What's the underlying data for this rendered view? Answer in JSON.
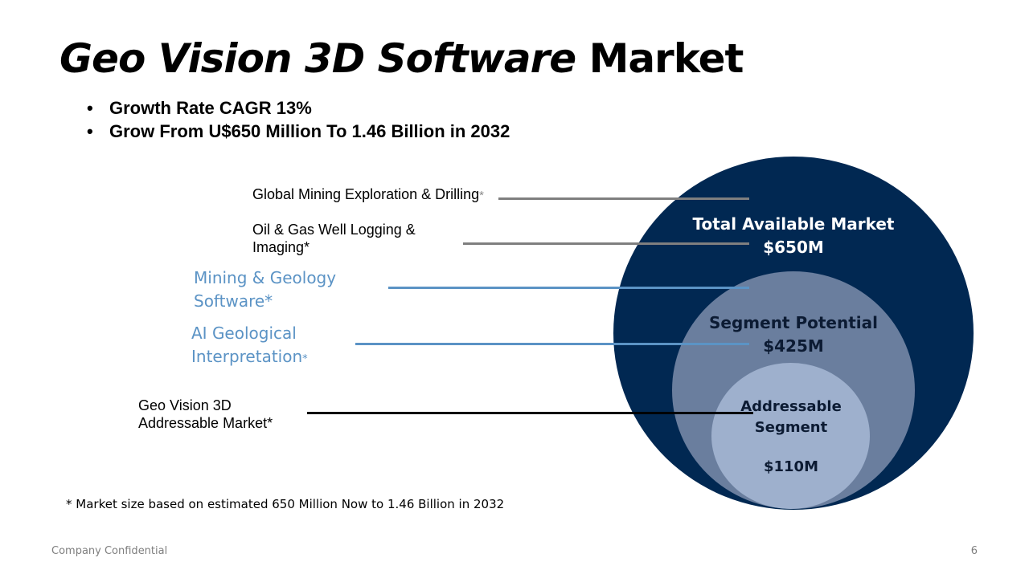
{
  "title": {
    "italic_part": "Geo Vision 3D Software",
    "plain_part": "Market"
  },
  "bullets": [
    "Growth Rate CAGR 13%",
    "Grow From U$650 Million To 1.46 Billion in 2032"
  ],
  "labels": {
    "mining_exploration": {
      "text": "Global Mining Exploration & Drilling",
      "asterisk": "*"
    },
    "oil_gas": {
      "line1": "Oil & Gas Well Logging &",
      "line2": "Imaging*"
    },
    "mining_geology": {
      "line1": "Mining & Geology",
      "line2": "Software*"
    },
    "ai_geological": {
      "line1": "AI Geological",
      "line2": "Interpretation",
      "asterisk": "*"
    },
    "geo_vision": {
      "line1": "Geo Vision 3D",
      "line2": "Addressable Market*"
    }
  },
  "circles": {
    "total": {
      "label": "Total Available Market",
      "value": "$650M"
    },
    "segment": {
      "label": "Segment Potential",
      "value": "$425M"
    },
    "addressable": {
      "line1": "Addressable",
      "line2": "Segment",
      "value": "$110M"
    }
  },
  "colors": {
    "outer_circle": "#012852",
    "middle_circle": "#6a7e9e",
    "inner_circle": "#9eb0cd",
    "grey_line": "#7f7f7f",
    "blue_line": "#5b93c5",
    "black_line": "#000000"
  },
  "footnote": "* Market size based on estimated 650 Million Now to 1.46 Billion in 2032",
  "footer": {
    "confidential": "Company Confidential",
    "page_number": "6"
  }
}
